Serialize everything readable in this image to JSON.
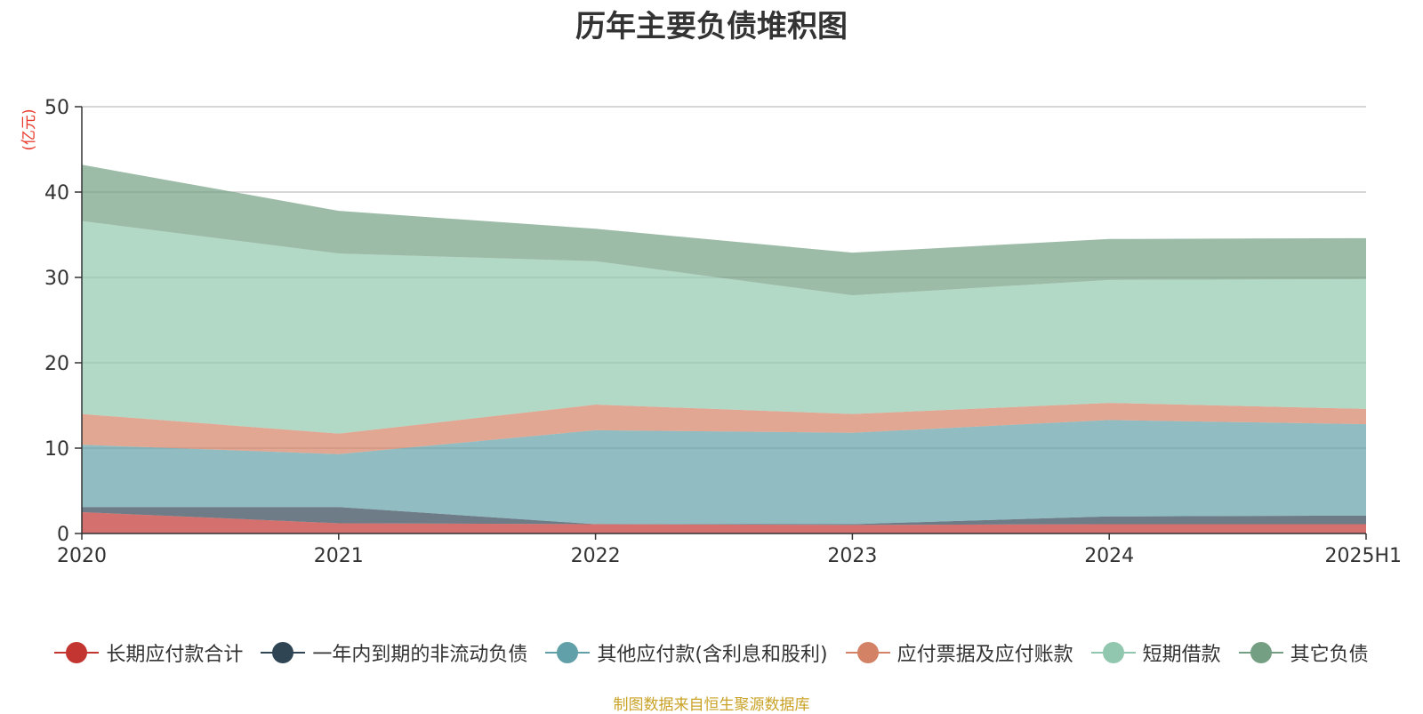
{
  "chart_data": {
    "type": "area",
    "stacked": true,
    "title": "历年主要负债堆积图",
    "y_unit_label": "(亿元)",
    "categories": [
      "2020",
      "2021",
      "2022",
      "2023",
      "2024",
      "2025H1"
    ],
    "ylim": [
      0,
      50
    ],
    "yticks": [
      0,
      10,
      20,
      30,
      40,
      50
    ],
    "grid": true,
    "legend_position": "bottom",
    "series": [
      {
        "name": "长期应付款合计",
        "color": "#c23531",
        "values": [
          2.5,
          1.2,
          1.1,
          1.0,
          1.1,
          1.1
        ]
      },
      {
        "name": "一年内到期的非流动负债",
        "color": "#2f4554",
        "values": [
          0.6,
          1.9,
          0.0,
          0.1,
          0.9,
          1.0
        ]
      },
      {
        "name": "其他应付款(含利息和股利)",
        "color": "#61a0a8",
        "values": [
          7.3,
          6.2,
          11.0,
          10.7,
          11.3,
          10.7
        ]
      },
      {
        "name": "应付票据及应付账款",
        "color": "#d48265",
        "values": [
          3.6,
          2.4,
          3.0,
          2.2,
          2.0,
          1.8
        ]
      },
      {
        "name": "短期借款",
        "color": "#91c7ae",
        "values": [
          22.6,
          21.1,
          16.8,
          13.9,
          14.4,
          15.2
        ]
      },
      {
        "name": "其它负债",
        "color": "#749f83",
        "values": [
          6.6,
          5.0,
          3.8,
          5.0,
          4.8,
          4.8
        ]
      }
    ]
  },
  "source_note": "制图数据来自恒生聚源数据库"
}
